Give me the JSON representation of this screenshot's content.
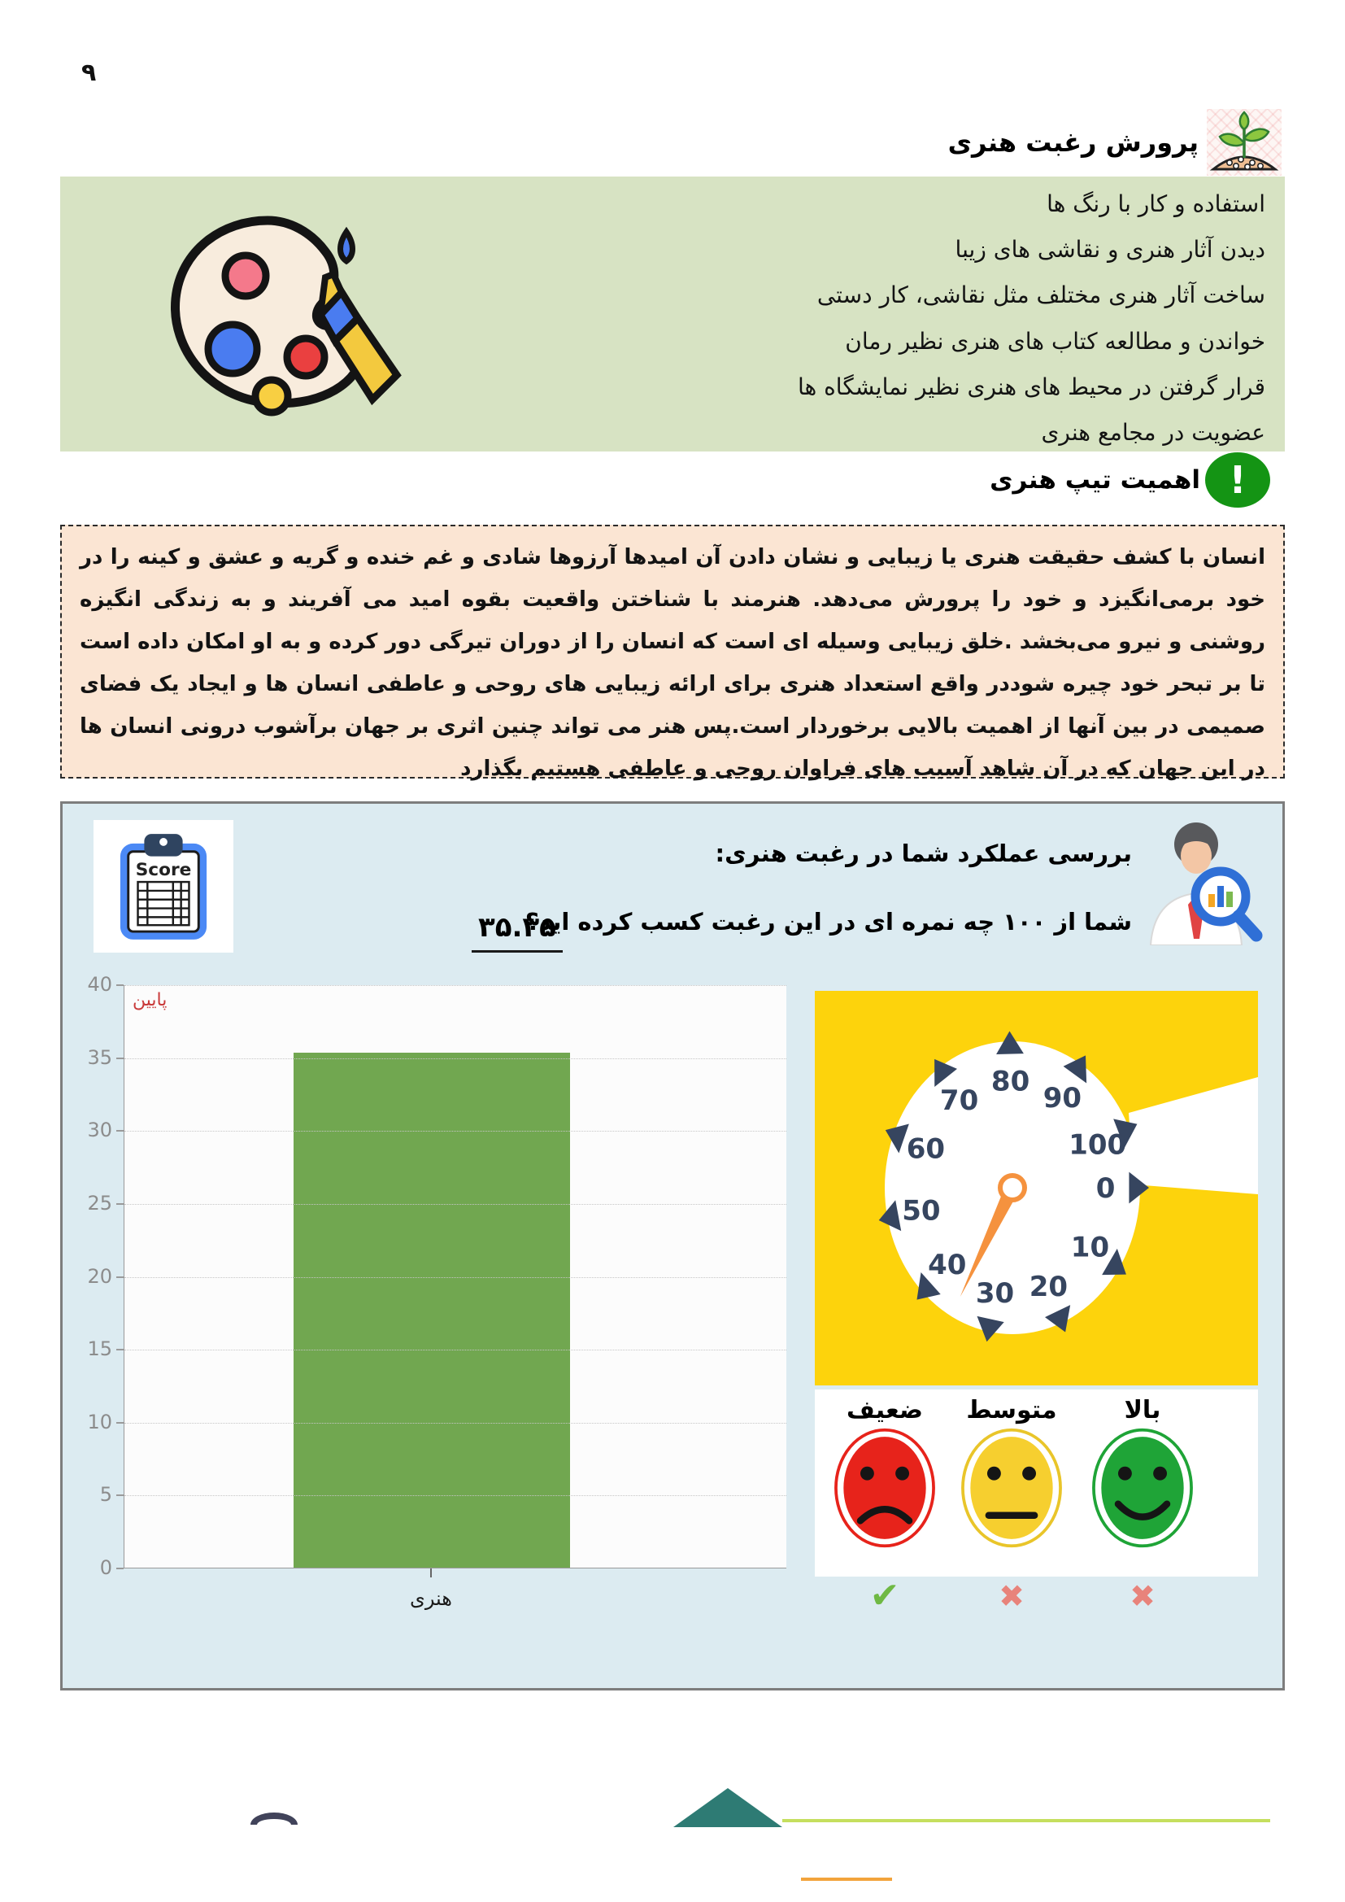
{
  "page_number": "۹",
  "header": {
    "title": "پرورش رغبت هنری"
  },
  "interest_box": {
    "items": [
      "استفاده و کار با رنگ ها",
      "دیدن آثار هنری و نقاشی های زیبا",
      "ساخت آثار هنری مختلف مثل نقاشی، کار دستی",
      "خواندن و مطالعه کتاب های هنری نظیر رمان",
      "قرار گرفتن در محیط های هنری نظیر نمایشگاه ها",
      "عضویت در مجامع هنری"
    ]
  },
  "importance": {
    "heading": "اهمیت تیپ هنری",
    "body": "انسان با کشف حقیقت هنری یا زیبایی و نشان دادن آن امیدها آرزوها شادی و غم خنده و گریه و عشق و کینه را در خود برمی‌انگیزد و خود را پرورش می‌دهد. هنرمند با شناختن واقعیت بقوه امید می آفریند و به زندگی انگیزه روشنی و نیرو می‌بخشد .خلق زیبایی وسیله ای است که انسان را از دوران تیرگی دور کرده و به او امکان داده است تا بر تبحر خود چیره شوددر واقع استعداد هنری برای ارائه زیبایی های روحی و عاطفی انسان ها و ایجاد یک فضای صمیمی در بین آنها از اهمیت بالایی برخوردار است.پس هنر می تواند چنین اثری بر جهان برآشوب درونی انسان ها در این جهان که در آن شاهد آسیب های فراوان روحی و عاطفی هستیم بگذارد"
  },
  "performance_panel": {
    "title": "بررسی عملکرد شما در رغبت هنری:",
    "question": "شما از ۱۰۰ چه نمره ای در این رغبت کسب کرده اید؟",
    "score_display": "۳۵.۳۵",
    "score_card_label": "Score",
    "ratings": [
      {
        "id": "weak",
        "label": "ضعیف",
        "face": "sad",
        "color": "#e7231b",
        "ring": "#e7231b",
        "mark": "check",
        "mark_color": "#6fb944"
      },
      {
        "id": "medium",
        "label": "متوسط",
        "face": "neutral",
        "color": "#f6cf2f",
        "ring": "#e9c52a",
        "mark": "x",
        "mark_color": "#e8837b"
      },
      {
        "id": "high",
        "label": "بالا",
        "face": "happy",
        "color": "#1fa437",
        "ring": "#1fa437",
        "mark": "x",
        "mark_color": "#e8837b"
      }
    ]
  },
  "chart_data": [
    {
      "type": "bar",
      "categories": [
        "هنری"
      ],
      "values": [
        35.35
      ],
      "title": "",
      "xlabel": "",
      "ylabel": "",
      "ylim": [
        0,
        40
      ],
      "yticks": [
        0,
        5,
        10,
        15,
        20,
        25,
        30,
        35,
        40
      ],
      "grid": "dotted-horizontal",
      "annotation": {
        "text": "پایین",
        "color": "#c93a3a"
      },
      "bar_color": "#71a750",
      "plot_bg": "#fcfcfc"
    },
    {
      "type": "gauge",
      "min": 0,
      "max": 100,
      "value": 35.35,
      "labels": [
        0,
        10,
        20,
        30,
        40,
        50,
        60,
        70,
        80,
        90,
        100
      ],
      "direction": "counter-clockwise",
      "tick_color": "#36455f",
      "number_color": "#36455f",
      "needle_color": "#f5923e",
      "bg_color": "#fdd30c"
    }
  ]
}
